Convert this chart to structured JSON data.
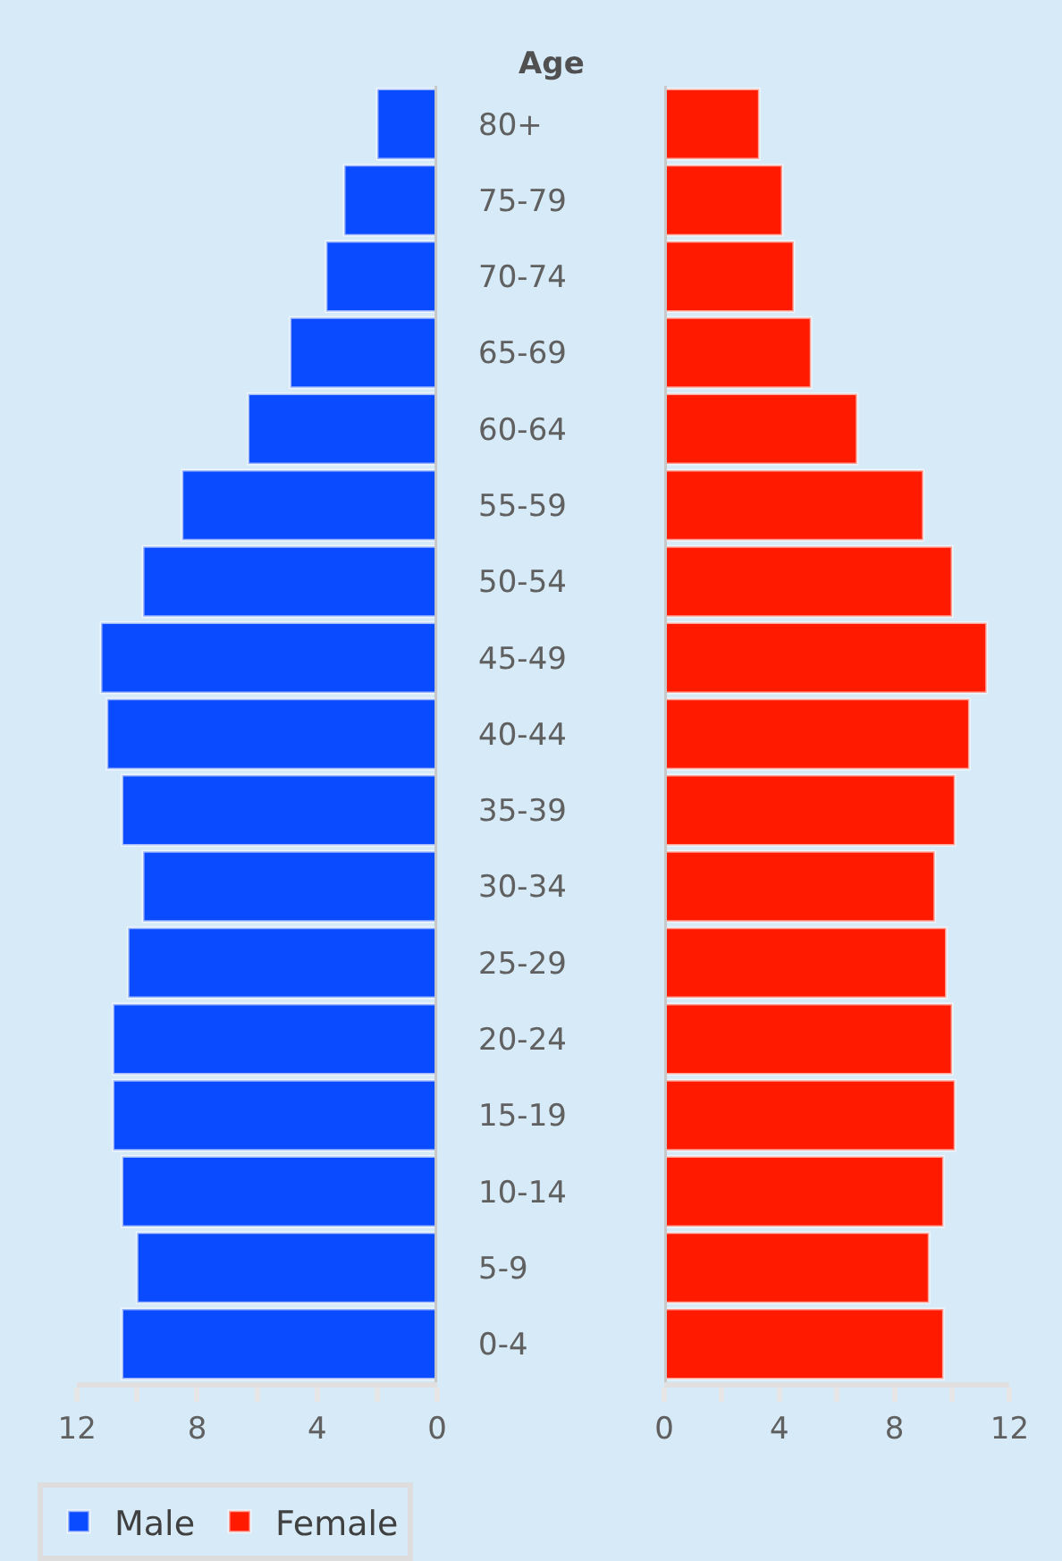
{
  "chart_data": [
    {
      "type": "bar",
      "orientation": "horizontal",
      "ylabel": "Age",
      "categories": [
        "80+",
        "75-79",
        "70-74",
        "65-69",
        "60-64",
        "55-59",
        "50-54",
        "45-49",
        "40-44",
        "35-39",
        "30-34",
        "25-29",
        "20-24",
        "15-19",
        "10-14",
        "5-9",
        "0-4"
      ],
      "series": [
        {
          "name": "Male",
          "color": "#0a4bff",
          "values": [
            2.0,
            3.1,
            3.7,
            4.9,
            6.3,
            8.5,
            9.8,
            11.2,
            11.0,
            10.5,
            9.8,
            10.3,
            10.8,
            10.8,
            10.5,
            10.0,
            10.5
          ]
        }
      ],
      "xlim": [
        12,
        0
      ],
      "xticks": [
        12,
        {
          "value": 10,
          "label": null
        },
        8,
        {
          "value": 6,
          "label": null
        },
        4,
        {
          "value": 2,
          "label": null
        },
        0
      ],
      "grid": false,
      "legend": "bottom left"
    },
    {
      "type": "bar",
      "orientation": "horizontal",
      "categories": [
        null,
        null,
        null,
        null,
        null,
        null,
        null,
        null,
        null,
        null,
        null,
        null,
        null,
        null,
        null,
        null,
        null
      ],
      "series": [
        {
          "name": "Female",
          "color": "#ff1a00",
          "values": [
            3.3,
            4.1,
            4.5,
            5.1,
            6.7,
            9.0,
            10.0,
            11.2,
            10.6,
            10.1,
            9.4,
            9.8,
            10.0,
            10.1,
            9.7,
            9.2,
            9.7
          ]
        }
      ],
      "xlim": [
        0,
        12
      ],
      "xticks": [
        0,
        {
          "value": 2,
          "label": null
        },
        4,
        {
          "value": 6,
          "label": null
        },
        8,
        {
          "value": 10,
          "label": null
        },
        12
      ],
      "grid": false,
      "legend": "bottom left",
      "tick_labels": "x"
    }
  ]
}
